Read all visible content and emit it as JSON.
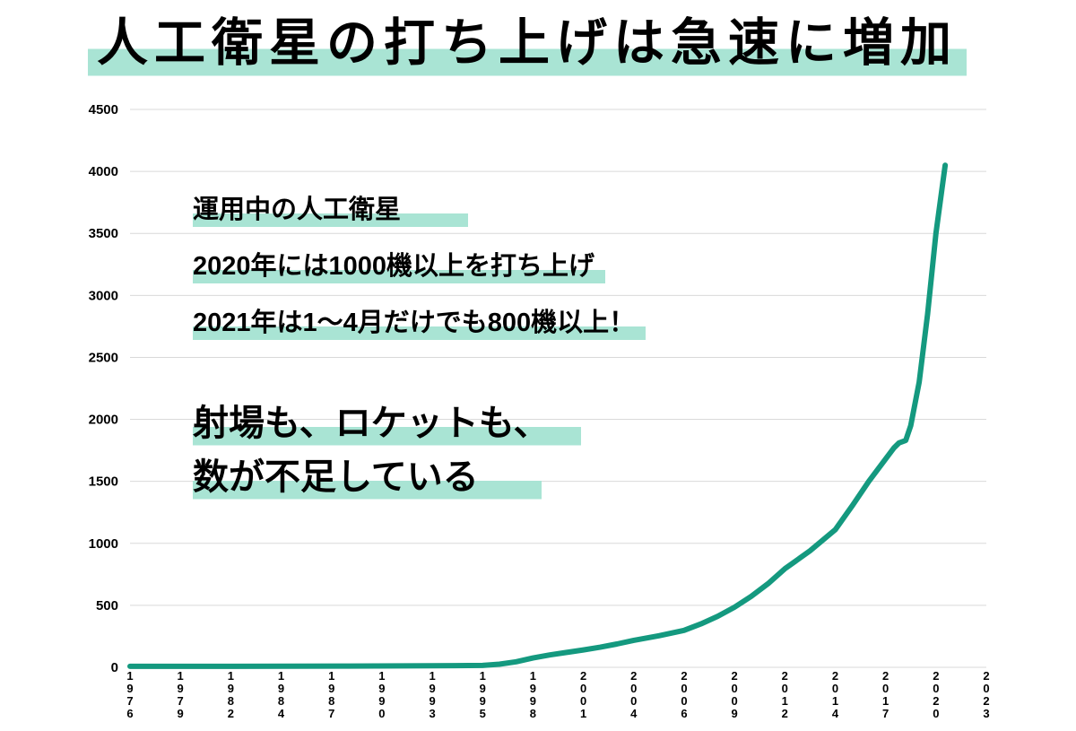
{
  "title": "人工衛星の打ち上げは急速に増加",
  "colors": {
    "line": "#14997F",
    "highlight": "#A9E4D4",
    "grid": "#D9D9D9",
    "text": "#000000",
    "background": "#FFFFFF"
  },
  "chart_data": {
    "type": "line",
    "title": "人工衛星の打ち上げは急速に増加",
    "xlabel": "",
    "ylabel": "",
    "ylim": [
      0,
      4500
    ],
    "y_ticks": [
      0,
      500,
      1000,
      1500,
      2000,
      2500,
      3000,
      3500,
      4000,
      4500
    ],
    "x_tick_labels": [
      "1976",
      "1979",
      "1982",
      "1984",
      "1987",
      "1990",
      "1993",
      "1995",
      "1998",
      "2001",
      "2004",
      "2006",
      "2009",
      "2012",
      "2014",
      "2017",
      "2020",
      "2023"
    ],
    "grid": "horizontal",
    "legend": "none",
    "series": [
      {
        "name": "運用中の人工衛星",
        "x": [
          1976,
          1982,
          1988,
          1993,
          1995,
          1996,
          1997,
          1998,
          1999,
          2000,
          2001,
          2002,
          2003,
          2004,
          2005,
          2006,
          2007,
          2008,
          2009,
          2010,
          2011,
          2012,
          2013,
          2014,
          2015,
          2016,
          2017,
          2017.5,
          2017.8,
          2018.2,
          2018.5,
          2019,
          2019.5,
          2020,
          2020.55
        ],
        "values": [
          8,
          8,
          10,
          12,
          15,
          25,
          45,
          75,
          100,
          120,
          140,
          162,
          188,
          218,
          255,
          298,
          350,
          412,
          485,
          572,
          675,
          795,
          940,
          1110,
          1300,
          1500,
          1680,
          1770,
          1810,
          1830,
          1950,
          2300,
          2850,
          3500,
          4050
        ]
      }
    ],
    "annotations": {
      "line1": "運用中の人工衛星",
      "line2": "2020年には1000機以上を打ち上げ",
      "line3": "2021年は1〜4月だけでも800機以上！",
      "big1": "射場も、ロケットも、",
      "big2": "数が不足している"
    }
  }
}
